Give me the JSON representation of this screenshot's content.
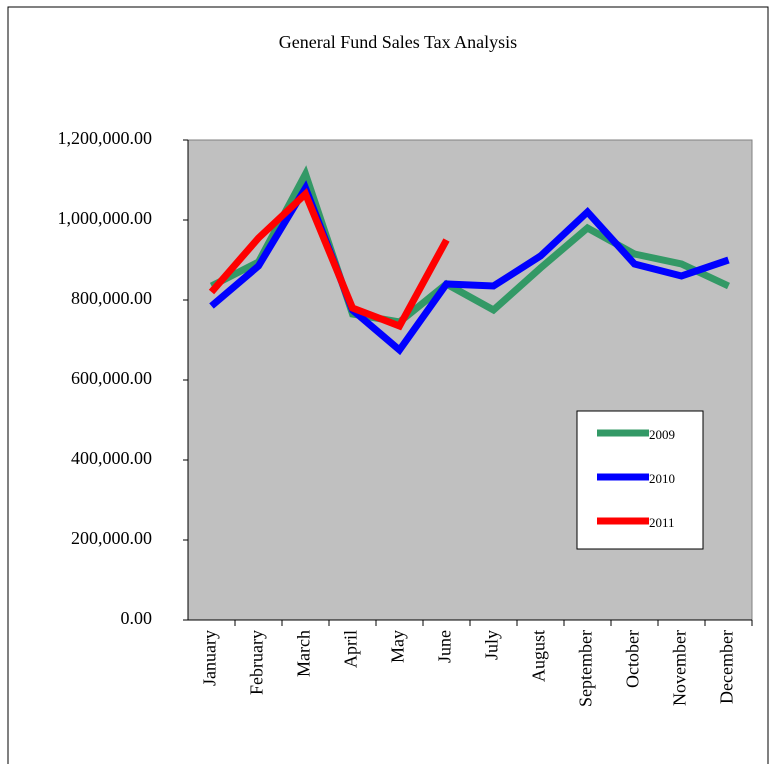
{
  "chart_data": {
    "type": "line",
    "title": "General Fund Sales Tax Analysis",
    "categories": [
      "January",
      "February",
      "March",
      "April",
      "May",
      "June",
      "July",
      "August",
      "September",
      "October",
      "November",
      "December"
    ],
    "series": [
      {
        "name": "2009",
        "color": "#339966",
        "values": [
          835000,
          895000,
          1115000,
          765000,
          745000,
          840000,
          775000,
          880000,
          980000,
          915000,
          890000,
          835000
        ]
      },
      {
        "name": "2010",
        "color": "#0000ff",
        "values": [
          785000,
          885000,
          1080000,
          775000,
          675000,
          840000,
          835000,
          910000,
          1020000,
          890000,
          860000,
          900000
        ]
      },
      {
        "name": "2011",
        "color": "#ff0000",
        "values": [
          820000,
          955000,
          1065000,
          780000,
          735000,
          950000,
          null,
          null,
          null,
          null,
          null,
          null
        ]
      }
    ],
    "ylim": [
      0,
      1200000
    ],
    "yticks": [
      {
        "value": 0,
        "label": "0.00"
      },
      {
        "value": 200000,
        "label": "200,000.00"
      },
      {
        "value": 400000,
        "label": "400,000.00"
      },
      {
        "value": 600000,
        "label": "600,000.00"
      },
      {
        "value": 800000,
        "label": "800,000.00"
      },
      {
        "value": 1000000,
        "label": "1,000,000.00"
      },
      {
        "value": 1200000,
        "label": "1,200,000.00"
      }
    ],
    "plot_background": "#c0c0c0",
    "legend": "lower-right"
  }
}
